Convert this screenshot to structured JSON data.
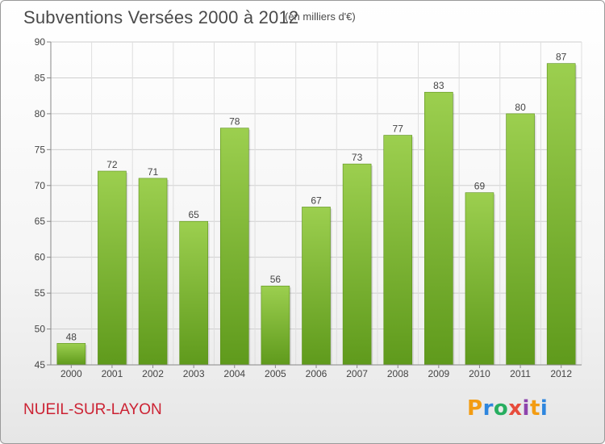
{
  "header": {
    "title": "Subventions Versées 2000 à 2012",
    "subtitle": "(en milliers d'€)"
  },
  "footer": {
    "commune": "NUEIL-SUR-LAYON",
    "logo_text": "Proxiti",
    "logo_letters": [
      {
        "ch": "P",
        "color": "#f39c12"
      },
      {
        "ch": "r",
        "color": "#2e86de"
      },
      {
        "ch": "o",
        "color": "#27ae60"
      },
      {
        "ch": "x",
        "color": "#e74c3c"
      },
      {
        "ch": "i",
        "color": "#8e44ad"
      },
      {
        "ch": "t",
        "color": "#f39c12"
      },
      {
        "ch": "i",
        "color": "#2e86de"
      }
    ]
  },
  "chart_data": {
    "type": "bar",
    "title": "Subventions Versées 2000 à 2012",
    "subtitle": "(en milliers d'€)",
    "categories": [
      "2000",
      "2001",
      "2002",
      "2003",
      "2004",
      "2005",
      "2006",
      "2007",
      "2008",
      "2009",
      "2010",
      "2011",
      "2012"
    ],
    "values": [
      48,
      72,
      71,
      65,
      78,
      56,
      67,
      73,
      77,
      83,
      69,
      80,
      87
    ],
    "ylim": [
      45,
      90
    ],
    "yticks": [
      45,
      50,
      55,
      60,
      65,
      70,
      75,
      80,
      85,
      90
    ],
    "grid": true,
    "bar_color_top": "#9ccf4f",
    "bar_color_bottom": "#5f9a1c",
    "xlabel": "",
    "ylabel": ""
  }
}
